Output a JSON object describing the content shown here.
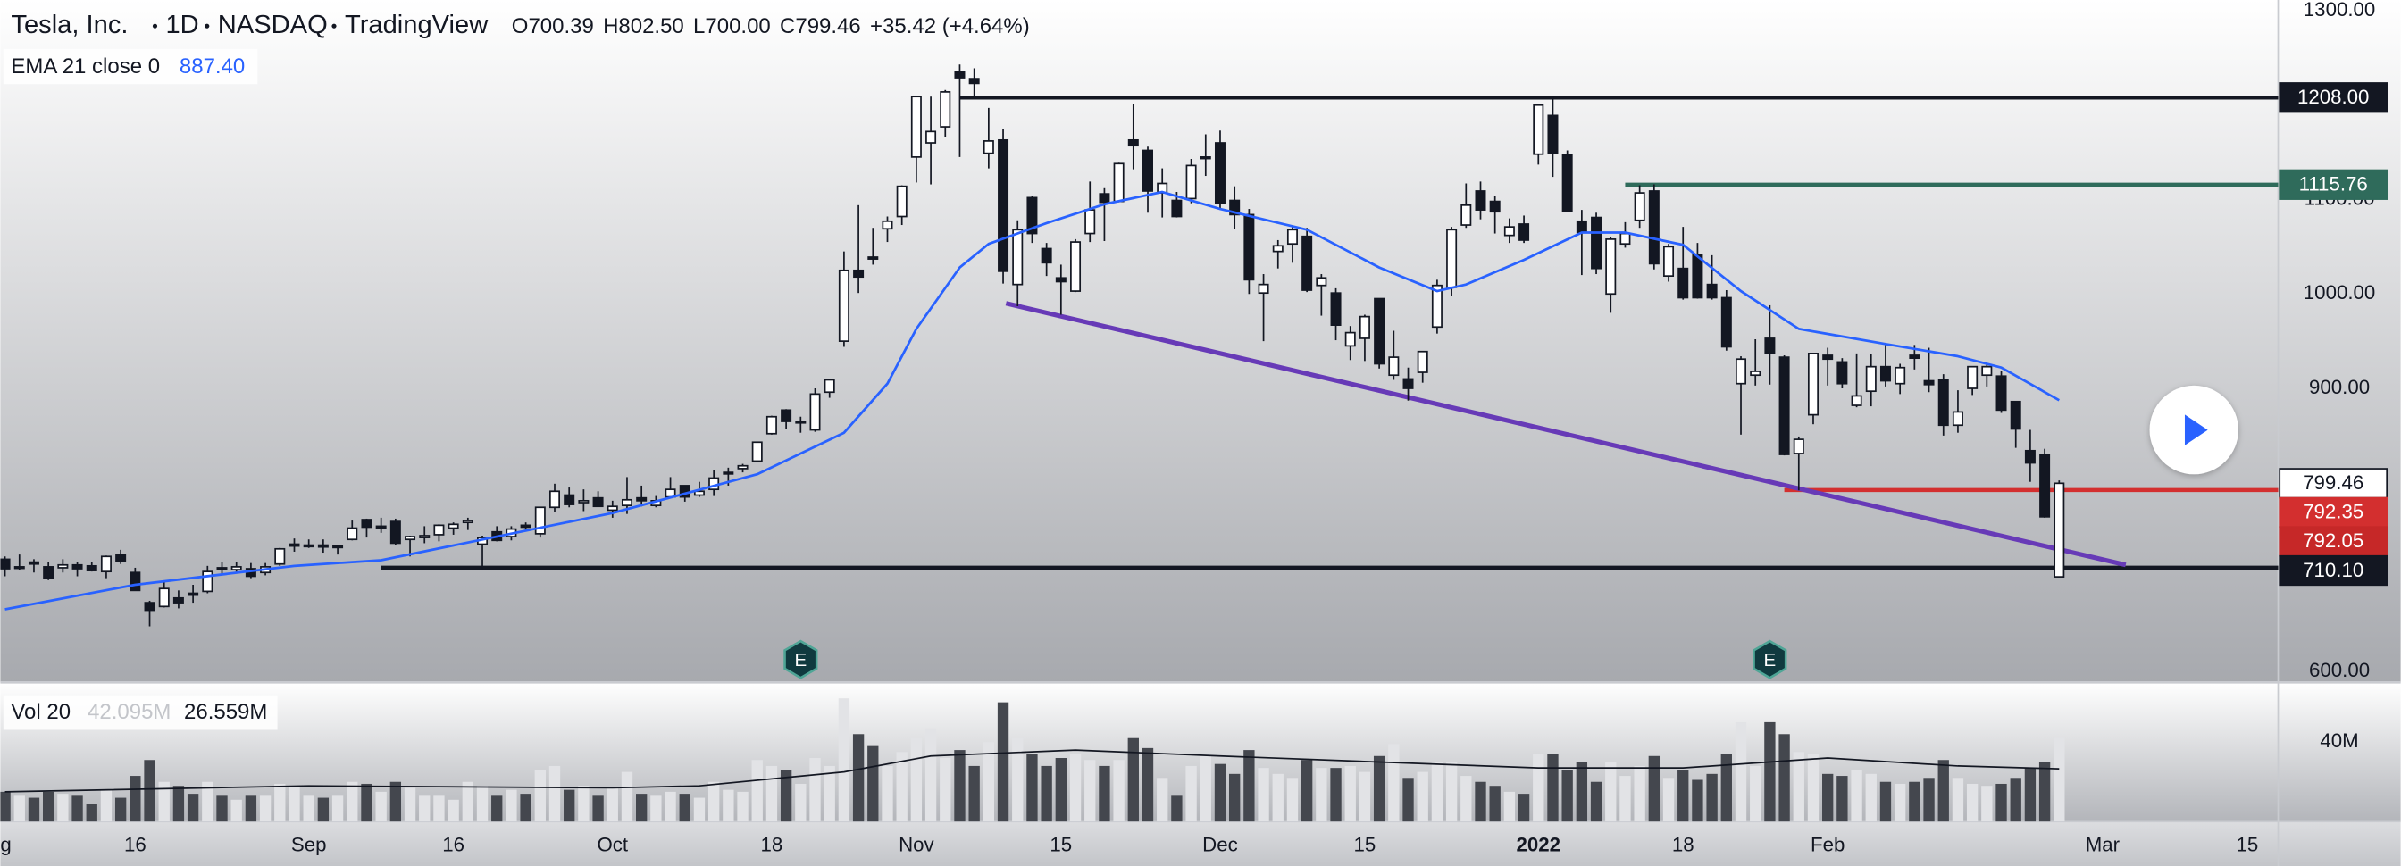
{
  "chart_data": {
    "type": "candlestick",
    "title": "Tesla, Inc.",
    "interval": "1D",
    "exchange": "NASDAQ",
    "source": "TradingView",
    "ohlc_header": [
      {
        "key": "O",
        "text": "700.39"
      },
      {
        "key": "H",
        "text": "802.50"
      },
      {
        "key": "L",
        "text": "700.00"
      },
      {
        "key": "C",
        "text": "799.46"
      }
    ],
    "change": "+35.42 (+4.64%)",
    "up_color": "#ffffff",
    "down_color": "#131722",
    "candles": [
      [
        719,
        722,
        701,
        709
      ],
      [
        711,
        724,
        708,
        711
      ],
      [
        716,
        719,
        705,
        714
      ],
      [
        711,
        716,
        697,
        699
      ],
      [
        710,
        719,
        705,
        713
      ],
      [
        713,
        716,
        701,
        709
      ],
      [
        712,
        716,
        706,
        707
      ],
      [
        706,
        723,
        699,
        722
      ],
      [
        724,
        729,
        714,
        717
      ],
      [
        705,
        710,
        686,
        686
      ],
      [
        673,
        675,
        648,
        665
      ],
      [
        669,
        695,
        668,
        688
      ],
      [
        678,
        686,
        667,
        673
      ],
      [
        683,
        692,
        673,
        681
      ],
      [
        685,
        712,
        683,
        706
      ],
      [
        710,
        716,
        702,
        708
      ],
      [
        708,
        716,
        704,
        711
      ],
      [
        709,
        715,
        699,
        701
      ],
      [
        705,
        715,
        702,
        711
      ],
      [
        714,
        731,
        712,
        730
      ],
      [
        733,
        741,
        727,
        735
      ],
      [
        734,
        740,
        731,
        734
      ],
      [
        734,
        740,
        726,
        732
      ],
      [
        732,
        734,
        724,
        733
      ],
      [
        740,
        760,
        739,
        752
      ],
      [
        761,
        762,
        742,
        753
      ],
      [
        753,
        763,
        747,
        754
      ],
      [
        759,
        762,
        734,
        736
      ],
      [
        740,
        744,
        722,
        743
      ],
      [
        742,
        754,
        736,
        744
      ],
      [
        745,
        756,
        738,
        755
      ],
      [
        752,
        758,
        745,
        756
      ],
      [
        758,
        763,
        750,
        760
      ],
      [
        735,
        744,
        708,
        742
      ],
      [
        748,
        754,
        738,
        739
      ],
      [
        743,
        754,
        739,
        751
      ],
      [
        755,
        758,
        749,
        753
      ],
      [
        746,
        774,
        742,
        774
      ],
      [
        774,
        799,
        769,
        791
      ],
      [
        787,
        795,
        774,
        777
      ],
      [
        779,
        793,
        770,
        781
      ],
      [
        784,
        791,
        776,
        775
      ],
      [
        771,
        781,
        763,
        775
      ],
      [
        776,
        806,
        767,
        782
      ],
      [
        784,
        797,
        775,
        781
      ],
      [
        776,
        786,
        774,
        781
      ],
      [
        785,
        806,
        784,
        793
      ],
      [
        797,
        797,
        780,
        785
      ],
      [
        787,
        801,
        785,
        791
      ],
      [
        793,
        813,
        786,
        805
      ],
      [
        811,
        816,
        797,
        811
      ],
      [
        815,
        820,
        811,
        818
      ],
      [
        823,
        843,
        822,
        843
      ],
      [
        852,
        871,
        851,
        870
      ],
      [
        877,
        878,
        857,
        865
      ],
      [
        865,
        870,
        853,
        865
      ],
      [
        856,
        900,
        854,
        894
      ],
      [
        896,
        910,
        890,
        909
      ],
      [
        950,
        1045,
        944,
        1025
      ],
      [
        1025,
        1094,
        1001,
        1018
      ],
      [
        1039,
        1070,
        1031,
        1037
      ],
      [
        1069,
        1082,
        1055,
        1077
      ],
      [
        1082,
        1115,
        1073,
        1114
      ],
      [
        1145,
        1209,
        1118,
        1209
      ],
      [
        1160,
        1209,
        1116,
        1172
      ],
      [
        1177,
        1216,
        1166,
        1214
      ],
      [
        1235,
        1243,
        1145,
        1229
      ],
      [
        1228,
        1239,
        1208,
        1223
      ],
      [
        1149,
        1197,
        1133,
        1162
      ],
      [
        1163,
        1175,
        1011,
        1024
      ],
      [
        1010,
        1078,
        987,
        1068
      ],
      [
        1102,
        1104,
        1054,
        1064
      ],
      [
        1048,
        1054,
        1019,
        1033
      ],
      [
        1017,
        1031,
        978,
        1013
      ],
      [
        1003,
        1058,
        1002,
        1055
      ],
      [
        1064,
        1119,
        1055,
        1089
      ],
      [
        1106,
        1112,
        1056,
        1097
      ],
      [
        1098,
        1139,
        1097,
        1138
      ],
      [
        1163,
        1201,
        1132,
        1157
      ],
      [
        1152,
        1156,
        1086,
        1109
      ],
      [
        1107,
        1133,
        1081,
        1117
      ],
      [
        1099,
        1108,
        1081,
        1082
      ],
      [
        1101,
        1143,
        1096,
        1136
      ],
      [
        1144,
        1169,
        1125,
        1145
      ],
      [
        1160,
        1173,
        1090,
        1096
      ],
      [
        1099,
        1114,
        1069,
        1084
      ],
      [
        1084,
        1090,
        1000,
        1015
      ],
      [
        1001,
        1021,
        950,
        1010
      ],
      [
        1045,
        1057,
        1027,
        1051
      ],
      [
        1053,
        1072,
        1033,
        1068
      ],
      [
        1061,
        1070,
        1002,
        1004
      ],
      [
        1009,
        1021,
        977,
        1017
      ],
      [
        1001,
        1006,
        951,
        967
      ],
      [
        945,
        966,
        930,
        959
      ],
      [
        953,
        978,
        929,
        976
      ],
      [
        995,
        995,
        921,
        926
      ],
      [
        914,
        961,
        909,
        933
      ],
      [
        910,
        922,
        887,
        900
      ],
      [
        917,
        939,
        906,
        939
      ],
      [
        965,
        1015,
        958,
        1009
      ],
      [
        1007,
        1071,
        998,
        1068
      ],
      [
        1073,
        1117,
        1070,
        1094
      ],
      [
        1109,
        1119,
        1079,
        1089
      ],
      [
        1098,
        1104,
        1064,
        1087
      ],
      [
        1062,
        1080,
        1054,
        1071
      ],
      [
        1074,
        1083,
        1054,
        1057
      ],
      [
        1148,
        1201,
        1137,
        1200
      ],
      [
        1189,
        1209,
        1124,
        1149
      ],
      [
        1147,
        1152,
        1087,
        1088
      ],
      [
        1077,
        1089,
        1020,
        1065
      ],
      [
        1081,
        1086,
        1021,
        1027
      ],
      [
        1000,
        1060,
        980,
        1058
      ],
      [
        1053,
        1076,
        1049,
        1064
      ],
      [
        1078,
        1115,
        1070,
        1107
      ],
      [
        1109,
        1116,
        1026,
        1032
      ],
      [
        1019,
        1053,
        1013,
        1050
      ],
      [
        1027,
        1071,
        994,
        996
      ],
      [
        1041,
        1054,
        995,
        996
      ],
      [
        1010,
        1041,
        994,
        996
      ],
      [
        996,
        1004,
        940,
        944
      ],
      [
        905,
        934,
        851,
        931
      ],
      [
        914,
        952,
        903,
        918
      ],
      [
        953,
        988,
        904,
        937
      ],
      [
        933,
        935,
        829,
        830
      ],
      [
        831,
        849,
        792,
        846
      ],
      [
        872,
        937,
        862,
        937
      ],
      [
        935,
        943,
        903,
        931
      ],
      [
        928,
        932,
        900,
        905
      ],
      [
        882,
        937,
        880,
        892
      ],
      [
        897,
        936,
        881,
        923
      ],
      [
        923,
        947,
        902,
        908
      ],
      [
        905,
        926,
        894,
        922
      ],
      [
        935,
        946,
        920,
        932
      ],
      [
        908,
        943,
        896,
        904
      ],
      [
        909,
        915,
        850,
        861
      ],
      [
        861,
        898,
        853,
        875
      ],
      [
        900,
        923,
        893,
        923
      ],
      [
        914,
        926,
        902,
        923
      ],
      [
        913,
        918,
        874,
        877
      ],
      [
        886,
        886,
        837,
        857
      ],
      [
        834,
        856,
        801,
        821
      ],
      [
        830,
        836,
        763,
        764
      ],
      [
        700.39,
        802.5,
        700,
        799.46
      ]
    ],
    "ema": {
      "name": "EMA 21 close 0",
      "last": "887.40",
      "color": "#2962ff",
      "x": [
        0,
        9,
        20,
        26,
        42,
        52,
        58,
        61,
        63,
        66,
        68,
        72,
        76,
        80,
        84,
        90,
        95,
        99,
        101,
        105,
        109,
        112,
        116,
        120,
        124,
        130,
        135,
        138,
        142
      ],
      "values": [
        666,
        692,
        712,
        718,
        768,
        809,
        853,
        905,
        963,
        1028,
        1053,
        1075,
        1095,
        1108,
        1090,
        1068,
        1028,
        1003,
        1010,
        1036,
        1065,
        1065,
        1052,
        1003,
        963,
        947,
        934,
        922,
        887.4
      ]
    },
    "xlim": [
      -0.32,
      157.14
    ],
    "xticks": [
      {
        "value": -1,
        "label": "g"
      },
      {
        "value": 9,
        "label": "16"
      },
      {
        "value": 21,
        "label": "Sep"
      },
      {
        "value": 31,
        "label": "16"
      },
      {
        "value": 42,
        "label": "Oct"
      },
      {
        "value": 53,
        "label": "18"
      },
      {
        "value": 63,
        "label": "Nov"
      },
      {
        "value": 73,
        "label": "15"
      },
      {
        "value": 84,
        "label": "Dec"
      },
      {
        "value": 94,
        "label": "15"
      },
      {
        "value": 106,
        "label": "2022"
      },
      {
        "value": 116,
        "label": "18"
      },
      {
        "value": 126,
        "label": "Feb"
      },
      {
        "value": 145,
        "label": "Mar"
      },
      {
        "value": 155,
        "label": "15"
      }
    ],
    "ylim": [
      588.6,
      1311.3
    ],
    "yticks": [
      {
        "value": 1300,
        "label": "1300.00"
      },
      {
        "value": 1100,
        "label": "1100.00"
      },
      {
        "value": 1000,
        "label": "1000.00"
      },
      {
        "value": 900,
        "label": "900.00"
      },
      {
        "value": 600,
        "label": "600.00"
      }
    ],
    "price_labels": [
      {
        "value": 1208,
        "label": "1208.00",
        "color": "#131722",
        "text_color": "#ffffff",
        "from": 66
      },
      {
        "value": 1115.76,
        "label": "1115.76",
        "color": "#2f6b5b",
        "text_color": "#ffffff",
        "from": 112
      },
      {
        "value": 799.46,
        "label": "799.46",
        "color": "#ffffff",
        "text_color": "#131722"
      },
      {
        "value": 792.35,
        "label": "792.35",
        "color": "#d32f2f",
        "text_color": "#ffffff",
        "from": 123
      },
      {
        "value": 792.05,
        "label": "792.05",
        "color": "#c62828",
        "text_color": "#ffffff"
      },
      {
        "value": 710.1,
        "label": "710.10",
        "color": "#131722",
        "text_color": "#ffffff",
        "from": 26
      }
    ],
    "trendline": {
      "color": "#673ab7",
      "x": [
        69.2,
        146.6
      ],
      "values": [
        990,
        713
      ]
    },
    "events": [
      {
        "x": 55,
        "label": "E"
      },
      {
        "x": 122,
        "label": "E"
      }
    ],
    "volume": {
      "name": "Vol 20",
      "last": "42.095M",
      "ma_last": "26.559M",
      "up_color": "#e2e3e6",
      "down_color": "#44474e",
      "values": [
        15,
        13,
        12,
        15,
        14,
        13,
        9,
        16,
        12,
        23,
        31,
        20,
        18,
        14,
        20,
        13,
        11,
        13,
        13,
        19,
        18,
        13,
        12,
        13,
        20,
        19,
        15,
        20,
        17,
        13,
        13,
        11,
        20,
        18,
        13,
        16,
        14,
        26,
        28,
        16,
        18,
        13,
        17,
        25,
        14,
        13,
        15,
        14,
        12,
        20,
        16,
        15,
        31,
        28,
        26,
        19,
        32,
        28,
        62,
        44,
        38,
        28,
        35,
        42,
        47,
        32,
        36,
        28,
        40,
        60,
        42,
        34,
        28,
        32,
        34,
        31,
        28,
        31,
        42,
        37,
        22,
        13,
        28,
        33,
        29,
        24,
        36,
        27,
        24,
        22,
        31,
        27,
        27,
        28,
        25,
        33,
        39,
        22,
        25,
        30,
        30,
        23,
        20,
        18,
        15,
        14,
        34,
        34,
        26,
        30,
        20,
        30,
        23,
        28,
        33,
        22,
        26,
        21,
        24,
        34,
        50,
        28,
        50,
        44,
        35,
        34,
        24,
        23,
        26,
        24,
        20,
        19,
        20,
        22,
        31,
        22,
        19,
        18,
        19,
        22,
        27,
        30,
        42.095
      ],
      "ylim": [
        0,
        70
      ],
      "yticks": [
        {
          "value": 40,
          "label": "40M"
        }
      ],
      "ma": {
        "color": "#131722",
        "x": [
          0,
          21,
          42,
          48,
          58,
          64,
          74,
          84,
          95,
          106,
          116,
          126,
          135,
          142
        ],
        "values": [
          15,
          18,
          17,
          18,
          25,
          33,
          36,
          33,
          30,
          27,
          27,
          32,
          28,
          26.559
        ]
      }
    }
  }
}
